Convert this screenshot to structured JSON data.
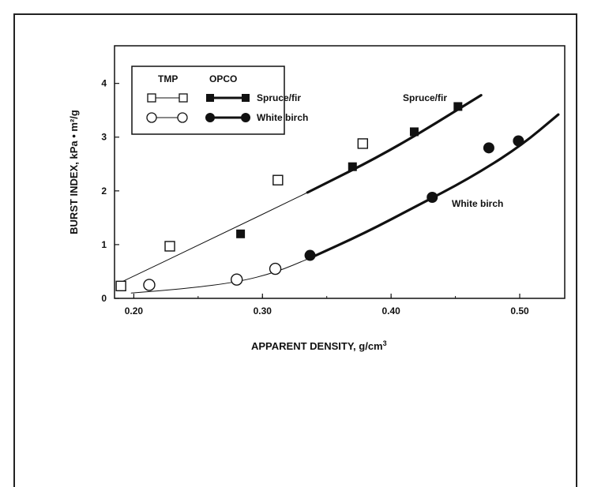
{
  "chart_data": {
    "type": "scatter",
    "title": "",
    "xlabel": "APPARENT DENSITY, g/cm",
    "xlabel_sup": "3",
    "ylabel": "BURST INDEX, kPa • m²/g",
    "xlim": [
      0.185,
      0.535
    ],
    "ylim": [
      0,
      4.7
    ],
    "x_ticks": [
      0.2,
      0.3,
      0.4,
      0.5
    ],
    "x_tick_labels": [
      "0.20",
      "0.30",
      "0.40",
      "0.50"
    ],
    "y_ticks": [
      0,
      1,
      2,
      3,
      4
    ],
    "y_tick_labels": [
      "0",
      "1",
      "2",
      "3",
      "4"
    ],
    "grid": false,
    "legend": {
      "position": "top-left",
      "col_headers": [
        "TMP",
        "OPCO"
      ],
      "rows": [
        "Spruce/fir",
        "White birch"
      ]
    },
    "annotations": [
      "Spruce/fir",
      "White birch"
    ],
    "series": [
      {
        "name": "Spruce/fir",
        "process": "TMP",
        "marker": "open-square",
        "points": [
          [
            0.19,
            0.23
          ],
          [
            0.228,
            0.97
          ],
          [
            0.312,
            2.2
          ],
          [
            0.378,
            2.88
          ]
        ]
      },
      {
        "name": "Spruce/fir",
        "process": "OPCO",
        "marker": "filled-square",
        "points": [
          [
            0.283,
            1.2
          ],
          [
            0.37,
            2.45
          ],
          [
            0.418,
            3.1
          ],
          [
            0.452,
            3.57
          ]
        ]
      },
      {
        "name": "White birch",
        "process": "TMP",
        "marker": "open-circle",
        "points": [
          [
            0.212,
            0.25
          ],
          [
            0.28,
            0.35
          ],
          [
            0.31,
            0.55
          ]
        ]
      },
      {
        "name": "White birch",
        "process": "OPCO",
        "marker": "filled-circle",
        "points": [
          [
            0.337,
            0.8
          ],
          [
            0.432,
            1.88
          ],
          [
            0.476,
            2.8
          ],
          [
            0.499,
            2.93
          ]
        ]
      }
    ],
    "fits": [
      {
        "name": "Spruce/fir TMP",
        "style": "thin",
        "points": [
          [
            0.19,
            0.3
          ],
          [
            0.26,
            1.1
          ],
          [
            0.335,
            1.97
          ]
        ]
      },
      {
        "name": "Spruce/fir OPCO",
        "style": "thick",
        "points": [
          [
            0.335,
            1.97
          ],
          [
            0.4,
            2.75
          ],
          [
            0.47,
            3.78
          ]
        ]
      },
      {
        "name": "White birch TMP",
        "style": "thin",
        "points": [
          [
            0.198,
            0.1
          ],
          [
            0.24,
            0.18
          ],
          [
            0.28,
            0.3
          ],
          [
            0.31,
            0.48
          ],
          [
            0.337,
            0.75
          ]
        ]
      },
      {
        "name": "White birch OPCO",
        "style": "thick",
        "points": [
          [
            0.337,
            0.75
          ],
          [
            0.38,
            1.22
          ],
          [
            0.42,
            1.72
          ],
          [
            0.46,
            2.22
          ],
          [
            0.5,
            2.82
          ],
          [
            0.53,
            3.42
          ]
        ]
      }
    ]
  }
}
